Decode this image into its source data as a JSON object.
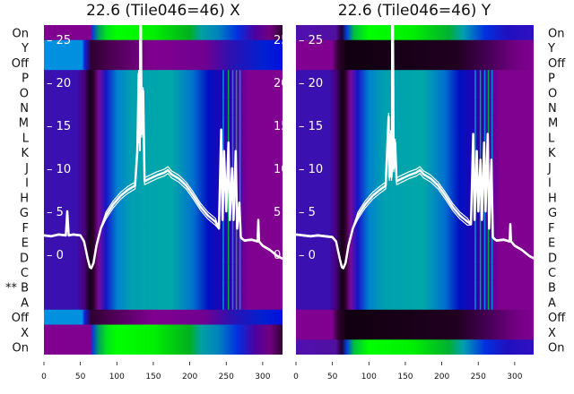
{
  "chart_data": [
    {
      "type": "heatmap",
      "title": "22.6 (Tile046=46) X",
      "row_labels": [
        "On",
        "Y",
        "Off",
        "P",
        "O",
        "N",
        "M",
        "L",
        "K",
        "J",
        "I",
        "H",
        "G",
        "F",
        "E",
        "D",
        "C",
        "B",
        "A",
        "Off",
        "X",
        "On"
      ],
      "row_types": [
        "on",
        "off",
        "off",
        "data",
        "data",
        "data",
        "data",
        "data",
        "data",
        "data",
        "data",
        "data",
        "data",
        "data",
        "data",
        "data",
        "data",
        "data",
        "data",
        "off",
        "on",
        "on"
      ],
      "row_marks": [
        "",
        "",
        "",
        "",
        "",
        "",
        "",
        "",
        "",
        "",
        "",
        "",
        "",
        "",
        "",
        "",
        "",
        "**",
        "",
        "",
        "",
        ""
      ],
      "x_ticks": [
        0,
        50,
        100,
        150,
        200,
        250,
        300
      ],
      "xlim": [
        0,
        327
      ],
      "y_ticks": [
        0,
        5,
        10,
        15,
        20,
        25
      ],
      "ylim": [
        -11.5,
        26.3
      ],
      "overlay_line": {
        "x": [
          0,
          10,
          20,
          30,
          32,
          34,
          40,
          50,
          55,
          60,
          63,
          65,
          68,
          72,
          78,
          85,
          95,
          105,
          115,
          125,
          128,
          130,
          131,
          132,
          133,
          134,
          136,
          138,
          145,
          155,
          165,
          170,
          175,
          185,
          195,
          205,
          215,
          225,
          235,
          240,
          243,
          245,
          247,
          250,
          253,
          255,
          258,
          260,
          263,
          265,
          268,
          270,
          272,
          275,
          285,
          293,
          294,
          295,
          300,
          310,
          320,
          327
        ],
        "y": [
          2.2,
          2.1,
          2.3,
          2.2,
          5,
          2.2,
          2.3,
          2.2,
          1.5,
          -0.5,
          -1.5,
          -1.6,
          -1,
          1,
          3,
          4.5,
          5.8,
          6.8,
          7.5,
          8,
          12,
          21,
          13,
          22,
          27,
          14,
          19,
          8.5,
          8.8,
          9.2,
          9.5,
          9.8,
          9.3,
          8.8,
          8,
          6.8,
          5.5,
          4.5,
          3.8,
          3,
          14.5,
          4,
          12,
          5,
          13,
          4,
          10,
          4,
          12,
          3,
          6,
          2,
          1.8,
          1.6,
          1.7,
          1.5,
          4,
          1.5,
          1,
          0.5,
          -0.2,
          -0.5
        ]
      }
    },
    {
      "type": "heatmap",
      "title": "22.6 (Tile046=46) Y",
      "row_labels": [
        "On",
        "Y",
        "Off",
        "P",
        "O",
        "N",
        "M",
        "L",
        "K",
        "J",
        "I",
        "H",
        "G",
        "F",
        "E",
        "D",
        "C",
        "B",
        "A",
        "Off",
        "X",
        "On"
      ],
      "row_types": [
        "onr",
        "offr",
        "offr",
        "data",
        "data",
        "data",
        "data",
        "data",
        "data",
        "data",
        "data",
        "data",
        "data",
        "data",
        "data",
        "data",
        "data",
        "data",
        "data",
        "offr",
        "offr",
        "onr"
      ],
      "x_ticks": [
        0,
        50,
        100,
        150,
        200,
        250,
        300
      ],
      "xlim": [
        0,
        327
      ],
      "y_ticks": [
        0,
        5,
        10,
        15,
        20,
        25
      ],
      "ylim": [
        -11.5,
        26.3
      ],
      "overlay_line": {
        "x": [
          0,
          10,
          20,
          30,
          40,
          50,
          55,
          60,
          63,
          65,
          68,
          72,
          78,
          85,
          95,
          105,
          115,
          123,
          125,
          127,
          128,
          130,
          131,
          132,
          133,
          134,
          136,
          138,
          145,
          155,
          165,
          170,
          175,
          185,
          195,
          205,
          215,
          225,
          235,
          240,
          243,
          245,
          248,
          250,
          253,
          255,
          258,
          260,
          263,
          265,
          268,
          270,
          272,
          275,
          285,
          293,
          294,
          295,
          300,
          310,
          320,
          327
        ],
        "y": [
          2.3,
          2.2,
          2.1,
          2.2,
          2.1,
          2.0,
          1.5,
          -0.5,
          -1.5,
          -1.6,
          -1,
          1,
          3,
          4.5,
          5.8,
          6.8,
          7.5,
          8,
          12,
          16,
          9,
          14,
          9,
          12,
          27,
          10,
          13,
          8.5,
          8.8,
          9.2,
          9.5,
          9.8,
          9.3,
          8.8,
          8,
          6.8,
          5.5,
          4.5,
          3.8,
          3.5,
          14,
          4,
          12,
          5,
          11,
          4,
          13,
          5,
          14,
          3,
          11,
          2,
          1.8,
          1.6,
          1.7,
          1.5,
          3.5,
          1.5,
          1,
          0.5,
          -0.2,
          -0.5
        ]
      }
    }
  ]
}
